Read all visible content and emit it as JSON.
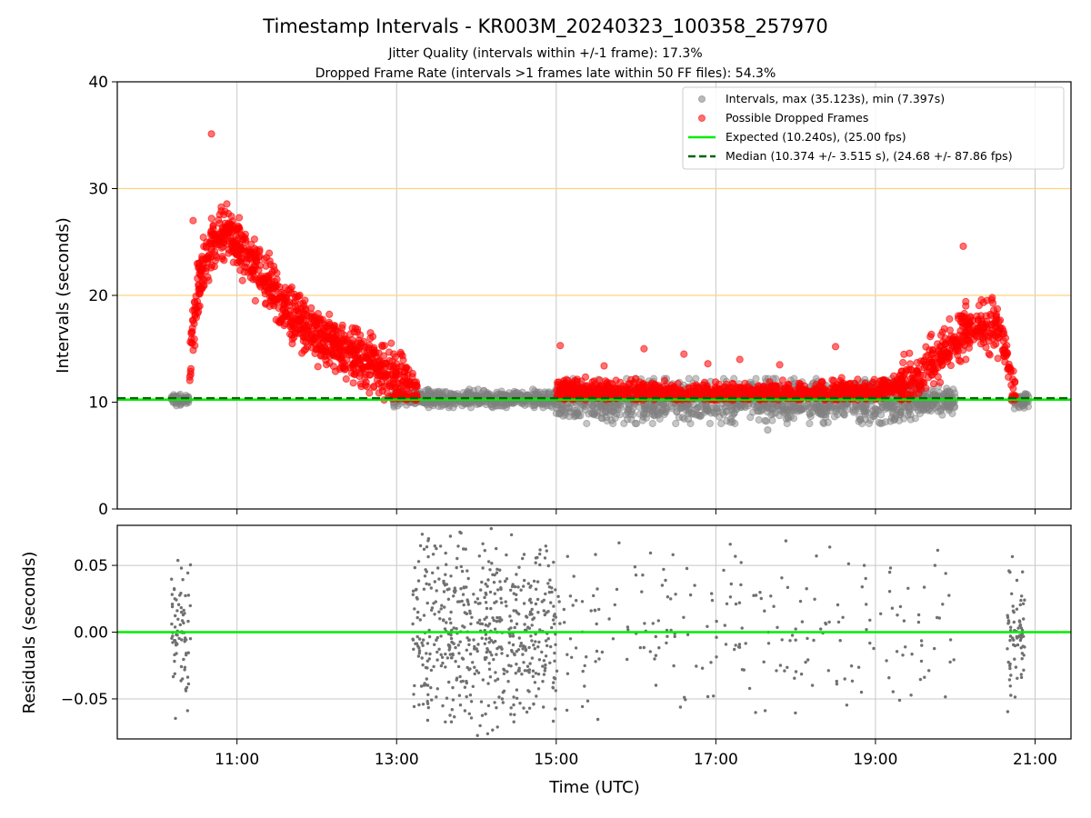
{
  "chart_data": [
    {
      "type": "scatter",
      "title": "Timestamp Intervals - KR003M_20240323_100358_257970",
      "subtitle_lines": [
        "Jitter Quality (intervals within +/-1 frame): 17.3%",
        "Dropped Frame Rate (intervals >1 frames late within 50 FF files): 54.3%"
      ],
      "xlabel": "",
      "ylabel": "Intervals (seconds)",
      "x_unit": "hours (UTC)",
      "xlim": [
        9.5,
        21.45
      ],
      "ylim": [
        0,
        40
      ],
      "yticks": [
        0,
        10,
        20,
        30,
        40
      ],
      "xticks": [
        11,
        13,
        15,
        17,
        19,
        21
      ],
      "xtick_labels": [
        "11:00",
        "13:00",
        "15:00",
        "17:00",
        "19:00",
        "21:00"
      ],
      "grid": true,
      "legend_position": "top-right",
      "reference_lines": [
        {
          "y": 20,
          "color": "#ffd27f"
        },
        {
          "y": 30,
          "color": "#ffd27f"
        }
      ],
      "series": [
        {
          "name": "Intervals, max (35.123s), min (7.397s)",
          "kind": "scatter",
          "color": "#808080",
          "envelope": [
            {
              "x_range": [
                10.17,
                10.4
              ],
              "low": 9.6,
              "high": 10.9
            },
            {
              "x_range": [
                12.95,
                15.0
              ],
              "low": 9.5,
              "high": 11.2
            },
            {
              "x_range": [
                15.0,
                19.5
              ],
              "low": 8.0,
              "high": 12.2
            },
            {
              "x_range": [
                19.5,
                20.0
              ],
              "low": 8.8,
              "high": 11.5
            },
            {
              "x_range": [
                20.7,
                20.92
              ],
              "low": 9.4,
              "high": 10.8
            }
          ],
          "min_point": {
            "x": 17.65,
            "y": 7.397
          }
        },
        {
          "name": "Possible Dropped Frames",
          "kind": "scatter",
          "color": "#ff0000",
          "trend": [
            {
              "x": 10.4,
              "y": 12
            },
            {
              "x": 10.45,
              "y": 18
            },
            {
              "x": 10.55,
              "y": 22
            },
            {
              "x": 10.7,
              "y": 25
            },
            {
              "x": 10.9,
              "y": 26
            },
            {
              "x": 11.1,
              "y": 24
            },
            {
              "x": 11.4,
              "y": 21
            },
            {
              "x": 11.7,
              "y": 18
            },
            {
              "x": 12.0,
              "y": 16.5
            },
            {
              "x": 12.4,
              "y": 14.5
            },
            {
              "x": 12.8,
              "y": 13
            },
            {
              "x": 13.1,
              "y": 11.5
            },
            {
              "x": 13.25,
              "y": 10.6
            },
            {
              "x": 15.0,
              "y": 11.2
            },
            {
              "x": 17.0,
              "y": 10.8
            },
            {
              "x": 19.0,
              "y": 11
            },
            {
              "x": 19.5,
              "y": 12
            },
            {
              "x": 19.9,
              "y": 15
            },
            {
              "x": 20.2,
              "y": 17
            },
            {
              "x": 20.5,
              "y": 17.5
            },
            {
              "x": 20.65,
              "y": 14
            },
            {
              "x": 20.75,
              "y": 10.5
            }
          ],
          "max_point": {
            "x": 10.68,
            "y": 35.123
          },
          "labeled_peaks": [
            {
              "x": 20.1,
              "y": 24.6
            },
            {
              "x": 10.45,
              "y": 27
            }
          ]
        },
        {
          "name": "Expected (10.240s), (25.00 fps)",
          "kind": "hline",
          "y": 10.24,
          "color": "#00ee00"
        },
        {
          "name": "Median (10.374 +/- 3.515 s), (24.68 +/- 87.86 fps)",
          "kind": "hline-dashed",
          "y": 10.374,
          "color": "#006400"
        }
      ]
    },
    {
      "type": "scatter",
      "xlabel": "Time (UTC)",
      "ylabel": "Residuals (seconds)",
      "xlim": [
        9.5,
        21.45
      ],
      "ylim": [
        -0.08,
        0.08
      ],
      "yticks": [
        -0.05,
        0.0,
        0.05
      ],
      "ytick_labels": [
        "−0.05",
        "0.00",
        "0.05"
      ],
      "xticks": [
        11,
        13,
        15,
        17,
        19,
        21
      ],
      "xtick_labels": [
        "11:00",
        "13:00",
        "15:00",
        "17:00",
        "19:00",
        "21:00"
      ],
      "grid": true,
      "zero_line_color": "#00ee00",
      "series": [
        {
          "kind": "scatter",
          "color": "#707070",
          "clusters": [
            {
              "x_range": [
                10.18,
                10.42
              ],
              "density": "high",
              "spread": 0.075
            },
            {
              "x_range": [
                13.2,
                15.0
              ],
              "density": "high",
              "spread": 0.08
            },
            {
              "x_range": [
                15.0,
                20.0
              ],
              "density": "low",
              "spread": 0.08
            },
            {
              "x_range": [
                20.65,
                20.88
              ],
              "density": "high",
              "spread": 0.075
            }
          ]
        }
      ]
    }
  ]
}
